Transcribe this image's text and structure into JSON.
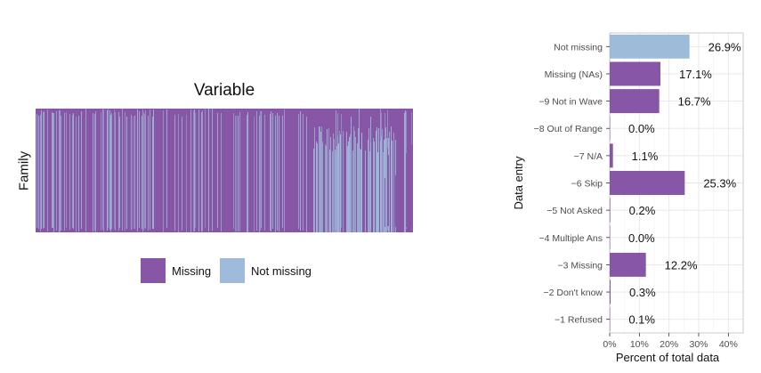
{
  "heatmap": {
    "title": "Variable",
    "ylabel": "Family",
    "legend": [
      {
        "label": "Missing",
        "color": "#8856a7"
      },
      {
        "label": "Not missing",
        "color": "#9ebcda"
      }
    ]
  },
  "chart_data": [
    {
      "type": "heatmap",
      "title": "Variable",
      "xlabel": "",
      "ylabel": "Family",
      "categories": [
        "Missing",
        "Not missing"
      ],
      "colors": {
        "Missing": "#8856a7",
        "Not missing": "#9ebcda"
      },
      "legend_position": "bottom"
    },
    {
      "type": "bar",
      "orientation": "horizontal",
      "title": "",
      "xlabel": "Percent of total data",
      "ylabel": "Data entry",
      "categories": [
        "Not missing",
        "Missing (NAs)",
        "−9 Not in Wave",
        "−8 Out of Range",
        "−7 N/A",
        "−6 Skip",
        "−5 Not Asked",
        "−4 Multiple Ans",
        "−3 Missing",
        "−2 Don't know",
        "−1 Refused"
      ],
      "values": [
        26.9,
        17.1,
        16.7,
        0.0,
        1.1,
        25.3,
        0.2,
        0.0,
        12.2,
        0.3,
        0.1
      ],
      "value_labels": [
        "26.9%",
        "17.1%",
        "16.7%",
        "0.0%",
        "1.1%",
        "25.3%",
        "0.2%",
        "0.0%",
        "12.2%",
        "0.3%",
        "0.1%"
      ],
      "bar_colors": [
        "#9ebcda",
        "#8856a7",
        "#8856a7",
        "#8856a7",
        "#8856a7",
        "#8856a7",
        "#8856a7",
        "#8856a7",
        "#8856a7",
        "#8856a7",
        "#8856a7"
      ],
      "xticks": [
        "0%",
        "10%",
        "20%",
        "30%",
        "40%"
      ],
      "xlim": [
        0,
        45
      ],
      "grid": true
    }
  ]
}
